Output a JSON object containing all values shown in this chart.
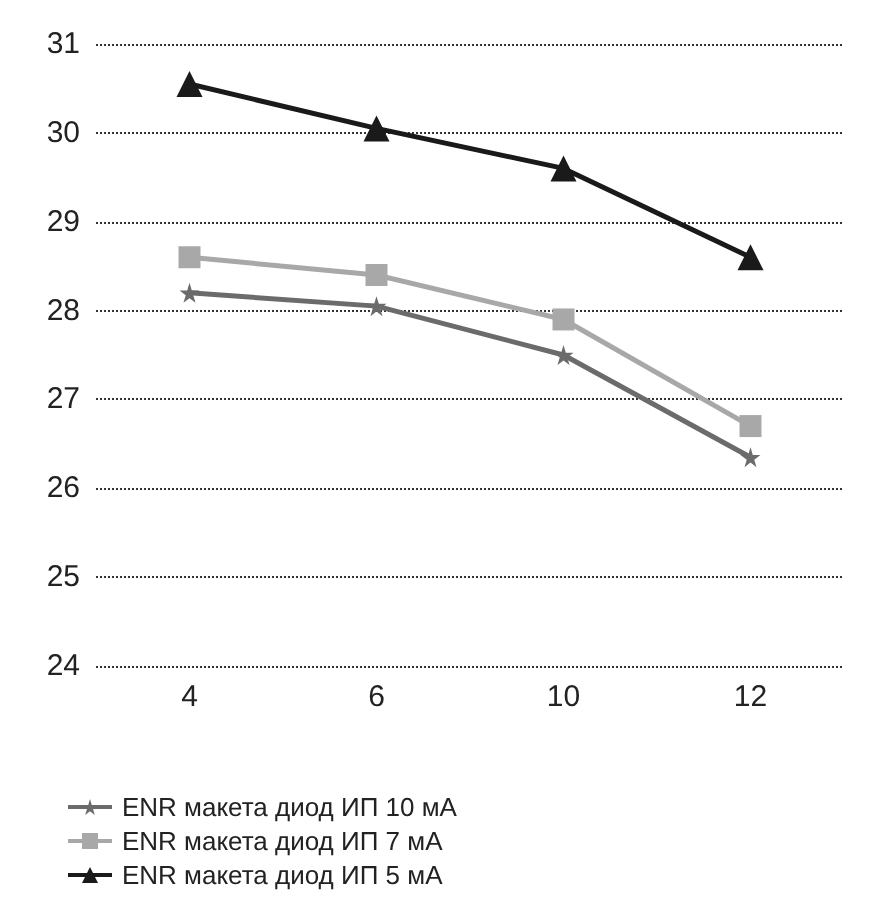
{
  "chart_data": {
    "type": "line",
    "categories": [
      "4",
      "6",
      "10",
      "12"
    ],
    "series": [
      {
        "name": "ENR макета диод ИП 10 мА",
        "color": "#6b6b6b",
        "marker": "star",
        "values": [
          28.2,
          28.05,
          27.5,
          26.35
        ]
      },
      {
        "name": "ENR макета диод ИП 7 мА",
        "color": "#a8a8a8",
        "marker": "square",
        "values": [
          28.6,
          28.4,
          27.9,
          26.7
        ]
      },
      {
        "name": "ENR макета диод ИП 5 мА",
        "color": "#1a1a1a",
        "marker": "triangle",
        "values": [
          30.55,
          30.05,
          29.6,
          28.6
        ]
      }
    ],
    "ylim": [
      24,
      31
    ],
    "yticks": [
      24,
      25,
      26,
      27,
      28,
      29,
      30,
      31
    ],
    "grid": "y",
    "legend": "bottom left"
  }
}
